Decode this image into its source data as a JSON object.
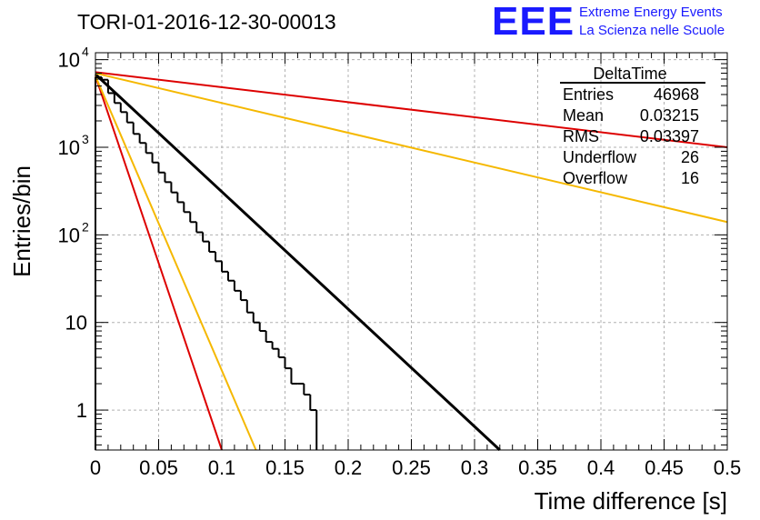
{
  "header": {
    "run_title": "TORI-01-2016-12-30-00013",
    "logo_text": "EEE",
    "logo_line1": "Extreme Energy Events",
    "logo_line2": "La Scienza nelle Scuole"
  },
  "stats_box": {
    "title": "DeltaTime",
    "rows": [
      {
        "label": "Entries",
        "value": "46968"
      },
      {
        "label": "Mean",
        "value": "0.03215"
      },
      {
        "label": "RMS",
        "value": "0.03397"
      },
      {
        "label": "Underflow",
        "value": "26"
      },
      {
        "label": "Overflow",
        "value": "16"
      }
    ]
  },
  "chart_data": {
    "type": "line",
    "title": "TORI-01-2016-12-30-00013",
    "xlabel": "Time difference [s]",
    "ylabel": "Entries/bin",
    "xlim": [
      0,
      0.5
    ],
    "ylim": [
      0.35,
      12000
    ],
    "yscale": "log",
    "grid": true,
    "x_ticks": [
      0,
      0.05,
      0.1,
      0.15,
      0.2,
      0.25,
      0.3,
      0.35,
      0.4,
      0.45,
      0.5
    ],
    "x_tick_labels": [
      "0",
      "0.05",
      "0.1",
      "0.15",
      "0.2",
      "0.25",
      "0.3",
      "0.35",
      "0.4",
      "0.45",
      "0.5"
    ],
    "y_ticks": [
      1,
      10,
      100,
      1000,
      10000
    ],
    "y_tick_labels": [
      {
        "base": "1",
        "exp": ""
      },
      {
        "base": "10",
        "exp": ""
      },
      {
        "base": "10",
        "exp": "2"
      },
      {
        "base": "10",
        "exp": "3"
      },
      {
        "base": "10",
        "exp": "4"
      }
    ],
    "histogram": {
      "color": "#000000",
      "bin_width": 0.005,
      "bins": [
        {
          "x": 0.0,
          "y": 6300
        },
        {
          "x": 0.005,
          "y": 5900
        },
        {
          "x": 0.01,
          "y": 4150
        },
        {
          "x": 0.015,
          "y": 3200
        },
        {
          "x": 0.02,
          "y": 2520
        },
        {
          "x": 0.025,
          "y": 1920
        },
        {
          "x": 0.03,
          "y": 1420
        },
        {
          "x": 0.035,
          "y": 1120
        },
        {
          "x": 0.04,
          "y": 860
        },
        {
          "x": 0.045,
          "y": 670
        },
        {
          "x": 0.05,
          "y": 515
        },
        {
          "x": 0.055,
          "y": 400
        },
        {
          "x": 0.06,
          "y": 305
        },
        {
          "x": 0.065,
          "y": 236
        },
        {
          "x": 0.07,
          "y": 182
        },
        {
          "x": 0.075,
          "y": 140
        },
        {
          "x": 0.08,
          "y": 107
        },
        {
          "x": 0.085,
          "y": 84
        },
        {
          "x": 0.09,
          "y": 64
        },
        {
          "x": 0.095,
          "y": 50
        },
        {
          "x": 0.1,
          "y": 38
        },
        {
          "x": 0.105,
          "y": 30
        },
        {
          "x": 0.11,
          "y": 23
        },
        {
          "x": 0.115,
          "y": 18
        },
        {
          "x": 0.12,
          "y": 13
        },
        {
          "x": 0.125,
          "y": 10
        },
        {
          "x": 0.13,
          "y": 8
        },
        {
          "x": 0.135,
          "y": 6
        },
        {
          "x": 0.14,
          "y": 5
        },
        {
          "x": 0.145,
          "y": 4
        },
        {
          "x": 0.15,
          "y": 3
        },
        {
          "x": 0.155,
          "y": 2
        },
        {
          "x": 0.16,
          "y": 2
        },
        {
          "x": 0.165,
          "y": 1.5
        },
        {
          "x": 0.17,
          "y": 1
        }
      ]
    },
    "fits": [
      {
        "color": "#000000",
        "x0": 0.0,
        "y0": 6800,
        "x1": 0.32,
        "y1": 0.35
      },
      {
        "color": "#dd0000",
        "x0": 0.0,
        "y0": 7200,
        "x1": 0.5,
        "y1": 1000
      },
      {
        "color": "#f5b800",
        "x0": 0.0,
        "y0": 7000,
        "x1": 0.5,
        "y1": 140
      },
      {
        "color": "#dd0000",
        "x0": 0.0,
        "y0": 6500,
        "x1": 0.1,
        "y1": 0.35
      },
      {
        "color": "#f5b800",
        "x0": 0.0,
        "y0": 6500,
        "x1": 0.127,
        "y1": 0.35
      }
    ]
  }
}
